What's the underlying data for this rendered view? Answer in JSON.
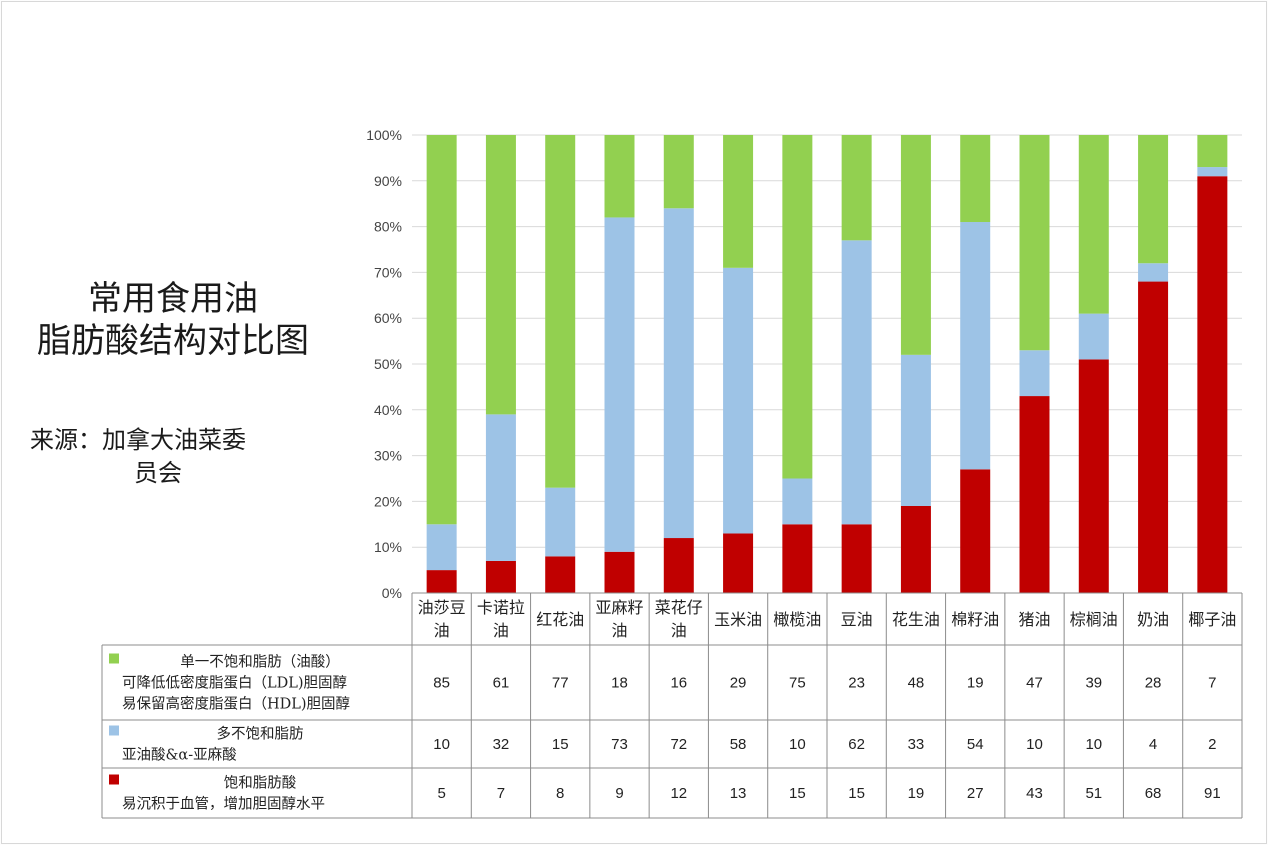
{
  "title": {
    "line1": "常用食用油",
    "line2": "脂肪酸结构对比图"
  },
  "source": {
    "line1": "来源：加拿大油菜委",
    "line2": "员会"
  },
  "chart_data": {
    "type": "bar",
    "stacked": true,
    "percent_stacked": true,
    "ylim": [
      0,
      100
    ],
    "yticks": [
      "0%",
      "10%",
      "20%",
      "30%",
      "40%",
      "50%",
      "60%",
      "70%",
      "80%",
      "90%",
      "100%"
    ],
    "grid": true,
    "categories": [
      [
        "油莎豆",
        "油"
      ],
      [
        "卡诺拉",
        "油"
      ],
      [
        "红花油"
      ],
      [
        "亚麻籽",
        "油"
      ],
      [
        "菜花仔",
        "油"
      ],
      [
        "玉米油"
      ],
      [
        "橄榄油"
      ],
      [
        "豆油"
      ],
      [
        "花生油"
      ],
      [
        "棉籽油"
      ],
      [
        "猪油"
      ],
      [
        "棕榈油"
      ],
      [
        "奶油"
      ],
      [
        "椰子油"
      ]
    ],
    "series": [
      {
        "key": "saturated",
        "color": "#c00000",
        "legend_lines": [
          "饱和脂肪酸",
          "易沉积于血管，增加胆固醇水平"
        ],
        "values": [
          5,
          7,
          8,
          9,
          12,
          13,
          15,
          15,
          19,
          27,
          43,
          51,
          68,
          91
        ]
      },
      {
        "key": "polyunsaturated",
        "color": "#9dc3e6",
        "legend_lines": [
          "多不饱和脂肪",
          "亚油酸&α-亚麻酸"
        ],
        "values": [
          10,
          32,
          15,
          73,
          72,
          58,
          10,
          62,
          33,
          54,
          10,
          10,
          4,
          2
        ]
      },
      {
        "key": "monounsaturated",
        "color": "#92d050",
        "legend_lines": [
          "单一不饱和脂肪（油酸）",
          "可降低低密度脂蛋白（LDL)胆固醇",
          "易保留高密度脂蛋白（HDL)胆固醇"
        ],
        "values": [
          85,
          61,
          77,
          18,
          16,
          29,
          75,
          23,
          48,
          19,
          47,
          39,
          28,
          7
        ]
      }
    ],
    "table_row_order": [
      "monounsaturated",
      "polyunsaturated",
      "saturated"
    ]
  }
}
